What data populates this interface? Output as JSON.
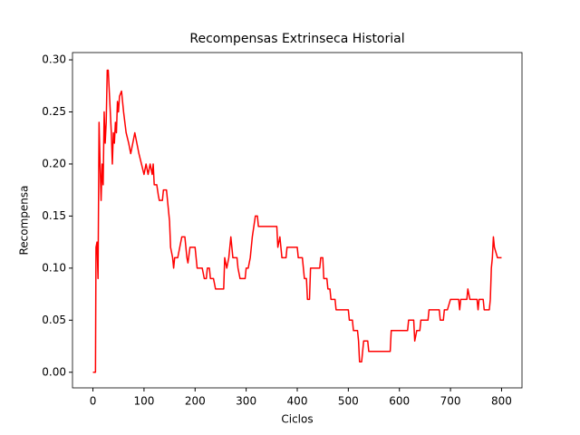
{
  "chart_data": {
    "type": "line",
    "title": "Recompensas Extrinseca Historial",
    "x_label": "Ciclos",
    "y_label": "Recompensa",
    "color": "#ff0000",
    "x": [
      0,
      5,
      6,
      8,
      10,
      12,
      14,
      16,
      18,
      20,
      22,
      24,
      26,
      28,
      30,
      32,
      36,
      38,
      40,
      42,
      44,
      46,
      48,
      50,
      52,
      56,
      60,
      65,
      70,
      74,
      78,
      82,
      86,
      90,
      95,
      100,
      104,
      108,
      112,
      116,
      118,
      120,
      125,
      128,
      130,
      136,
      138,
      144,
      146,
      150,
      152,
      156,
      158,
      160,
      166,
      170,
      174,
      180,
      184,
      186,
      190,
      200,
      204,
      214,
      218,
      222,
      224,
      228,
      230,
      236,
      240,
      256,
      258,
      262,
      266,
      270,
      272,
      274,
      282,
      284,
      288,
      298,
      300,
      304,
      308,
      312,
      318,
      322,
      324,
      360,
      362,
      366,
      370,
      378,
      380,
      400,
      402,
      410,
      414,
      418,
      420,
      424,
      426,
      444,
      446,
      450,
      452,
      458,
      460,
      464,
      466,
      474,
      476,
      500,
      502,
      508,
      510,
      518,
      520,
      522,
      526,
      528,
      530,
      538,
      540,
      582,
      584,
      616,
      618,
      628,
      630,
      634,
      640,
      642,
      656,
      658,
      678,
      680,
      686,
      688,
      694,
      700,
      716,
      718,
      720,
      732,
      734,
      738,
      752,
      754,
      756,
      764,
      766,
      776,
      778,
      780,
      782,
      784,
      786,
      792,
      794,
      800
    ],
    "values": [
      0,
      0,
      0.12,
      0.125,
      0.09,
      0.24,
      0.2,
      0.165,
      0.2,
      0.18,
      0.25,
      0.22,
      0.24,
      0.29,
      0.29,
      0.27,
      0.23,
      0.2,
      0.23,
      0.22,
      0.24,
      0.23,
      0.26,
      0.25,
      0.265,
      0.27,
      0.25,
      0.23,
      0.22,
      0.21,
      0.22,
      0.23,
      0.22,
      0.21,
      0.2,
      0.19,
      0.2,
      0.19,
      0.2,
      0.19,
      0.2,
      0.18,
      0.18,
      0.17,
      0.165,
      0.165,
      0.175,
      0.175,
      0.165,
      0.145,
      0.12,
      0.11,
      0.1,
      0.11,
      0.11,
      0.12,
      0.13,
      0.13,
      0.11,
      0.105,
      0.12,
      0.12,
      0.1,
      0.1,
      0.09,
      0.09,
      0.1,
      0.1,
      0.09,
      0.09,
      0.08,
      0.08,
      0.11,
      0.1,
      0.11,
      0.13,
      0.12,
      0.11,
      0.11,
      0.1,
      0.09,
      0.09,
      0.1,
      0.1,
      0.11,
      0.13,
      0.15,
      0.15,
      0.14,
      0.14,
      0.12,
      0.13,
      0.11,
      0.11,
      0.12,
      0.12,
      0.11,
      0.11,
      0.09,
      0.09,
      0.07,
      0.07,
      0.1,
      0.1,
      0.11,
      0.11,
      0.09,
      0.09,
      0.08,
      0.08,
      0.07,
      0.07,
      0.06,
      0.06,
      0.05,
      0.05,
      0.04,
      0.04,
      0.03,
      0.01,
      0.01,
      0.02,
      0.03,
      0.03,
      0.02,
      0.02,
      0.04,
      0.04,
      0.05,
      0.05,
      0.03,
      0.04,
      0.04,
      0.05,
      0.05,
      0.06,
      0.06,
      0.05,
      0.05,
      0.06,
      0.06,
      0.07,
      0.07,
      0.06,
      0.07,
      0.07,
      0.08,
      0.07,
      0.07,
      0.06,
      0.07,
      0.07,
      0.06,
      0.06,
      0.07,
      0.1,
      0.11,
      0.13,
      0.12,
      0.11,
      0.11,
      0.11
    ],
    "xlim": [
      -40,
      840
    ],
    "xticks": [
      0,
      100,
      200,
      300,
      400,
      500,
      600,
      700,
      800
    ],
    "ylim": [
      -0.015,
      0.307
    ],
    "yticks": [
      {
        "value": 0,
        "label": "0.00"
      },
      {
        "value": 0.05,
        "label": "0.05"
      },
      {
        "value": 0.1,
        "label": "0.10"
      },
      {
        "value": 0.15,
        "label": "0.15"
      },
      {
        "value": 0.2,
        "label": "0.20"
      },
      {
        "value": 0.25,
        "label": "0.25"
      },
      {
        "value": 0.3,
        "label": "0.30"
      }
    ]
  }
}
